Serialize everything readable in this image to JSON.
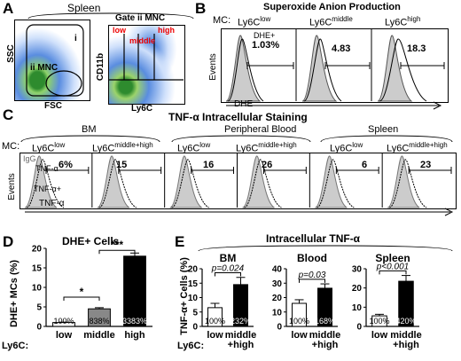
{
  "panelA": {
    "letter": "A",
    "title": "Spleen",
    "gate_title": "Gate ii MNC",
    "x_label_left": "FSC",
    "y_label_left": "SSC",
    "gate_i": "i",
    "gate_ii": "ii MNC",
    "x_label_right": "Ly6C",
    "y_label_right": "CD11b",
    "gate_low": "low",
    "gate_middle": "middle",
    "gate_high": "high"
  },
  "panelB": {
    "letter": "B",
    "title": "Superoxide Anion Production",
    "mc_label": "MC:",
    "groups": [
      "Ly6Clow",
      "Ly6Cmiddle",
      "Ly6Chigh"
    ],
    "group_base": "Ly6C",
    "group_sup": [
      "low",
      "middle",
      "high"
    ],
    "dhe_plus": "DHE+",
    "values": [
      "1.03%",
      "4.83",
      "18.3"
    ],
    "y_label": "Events",
    "x_label": "DHE"
  },
  "panelC": {
    "letter": "C",
    "title": "TNF-α Intracellular Staining",
    "mc_label": "MC:",
    "tissues": [
      "BM",
      "Peripheral Blood",
      "Spleen"
    ],
    "group_base": "Ly6C",
    "group_sup": [
      "low",
      "middle+high",
      "low",
      "middle+high",
      "low",
      "middle+high"
    ],
    "values": [
      "6%",
      "15",
      "16",
      "26",
      "6",
      "23"
    ],
    "igg": "IgG",
    "tnf": "TNF-α",
    "tnf_plus": "TNF-α+",
    "y_label": "Events",
    "x_label": "TNF-α"
  },
  "panelD": {
    "letter": "D",
    "title": "DHE+ Cells",
    "y_label": "DHE+ MCs (%)",
    "x_prefix": "Ly6C:",
    "chart_data": {
      "type": "bar",
      "categories": [
        "low",
        "middle",
        "high"
      ],
      "values": [
        1,
        4.5,
        18
      ],
      "errors": [
        0.1,
        0.3,
        0.8
      ],
      "bar_labels": [
        "100%",
        "838%",
        "3383%"
      ],
      "colors": [
        "#ffffff",
        "#888888",
        "#000000"
      ],
      "ylim": [
        0,
        20
      ],
      "yticks": [
        0,
        5,
        10,
        15,
        20
      ],
      "significance": [
        "*",
        "***"
      ]
    }
  },
  "panelE": {
    "letter": "E",
    "title": "Intracellular TNF-α",
    "y_label": "TNF-α+ Cells (%)",
    "x_prefix": "Ly6C:",
    "chart_data": [
      {
        "type": "bar",
        "title": "BM",
        "categories": [
          "low",
          "middle+high"
        ],
        "values": [
          6.5,
          14.5
        ],
        "errors": [
          1.5,
          2.5
        ],
        "bar_labels": [
          "100%",
          "232%"
        ],
        "colors": [
          "#ffffff",
          "#000000"
        ],
        "ylim": [
          0,
          20
        ],
        "yticks": [
          0,
          5,
          10,
          15,
          20
        ],
        "pvalue": "p=0.024"
      },
      {
        "type": "bar",
        "title": "Blood",
        "categories": [
          "low",
          "middle+high"
        ],
        "values": [
          16,
          26.5
        ],
        "errors": [
          2.5,
          3
        ],
        "bar_labels": [
          "100%",
          "168%"
        ],
        "colors": [
          "#ffffff",
          "#000000"
        ],
        "ylim": [
          0,
          40
        ],
        "yticks": [
          0,
          10,
          20,
          30,
          40
        ],
        "pvalue": "p=0.03"
      },
      {
        "type": "bar",
        "title": "Spleen",
        "categories": [
          "low",
          "middle+high"
        ],
        "values": [
          5.5,
          23.5
        ],
        "errors": [
          0.8,
          3
        ],
        "bar_labels": [
          "100%",
          "420%"
        ],
        "colors": [
          "#ffffff",
          "#000000"
        ],
        "ylim": [
          0,
          30
        ],
        "yticks": [
          0,
          10,
          20,
          30
        ],
        "pvalue": "p<0.001"
      }
    ]
  }
}
